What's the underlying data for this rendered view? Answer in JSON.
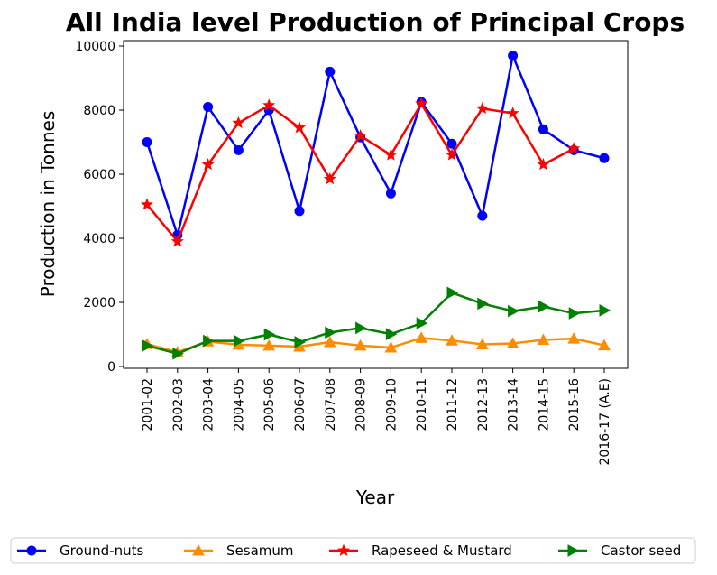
{
  "chart_data": {
    "type": "line",
    "title": "All India level Production of Principal Crops",
    "xlabel": "Year",
    "ylabel": "Production in Tonnes",
    "categories": [
      "2001-02",
      "2002-03",
      "2003-04",
      "2004-05",
      "2005-06",
      "2006-07",
      "2007-08",
      "2008-09",
      "2009-10",
      "2010-11",
      "2011-12",
      "2012-13",
      "2013-14",
      "2014-15",
      "2015-16",
      "2016-17 (A.E)"
    ],
    "ylim": [
      0,
      10000
    ],
    "yticks": [
      0,
      2000,
      4000,
      6000,
      8000,
      10000
    ],
    "grid": false,
    "legend_position": "bottom",
    "series": [
      {
        "name": "Ground-nuts",
        "color": "#0000ff",
        "marker": "circle",
        "values": [
          7000,
          4100,
          8100,
          6750,
          8000,
          4850,
          9200,
          7150,
          5400,
          8250,
          6950,
          4700,
          9700,
          7400,
          6750,
          6500
        ]
      },
      {
        "name": "Sesamum",
        "color": "#ff8c00",
        "marker": "triangle-up",
        "values": [
          700,
          450,
          780,
          680,
          650,
          620,
          760,
          650,
          590,
          890,
          810,
          690,
          720,
          830,
          870,
          660
        ]
      },
      {
        "name": "Rapeseed & Mustard",
        "color": "#ff0000",
        "marker": "star",
        "values": [
          5050,
          3900,
          6300,
          7600,
          8150,
          7450,
          5850,
          7200,
          6600,
          8200,
          6600,
          8050,
          7900,
          6300,
          6800,
          null
        ]
      },
      {
        "name": "Castor seed",
        "color": "#008000",
        "marker": "triangle-right",
        "values": [
          650,
          400,
          800,
          800,
          1000,
          760,
          1060,
          1200,
          1010,
          1350,
          2300,
          1960,
          1730,
          1870,
          1660,
          1750
        ]
      }
    ]
  }
}
